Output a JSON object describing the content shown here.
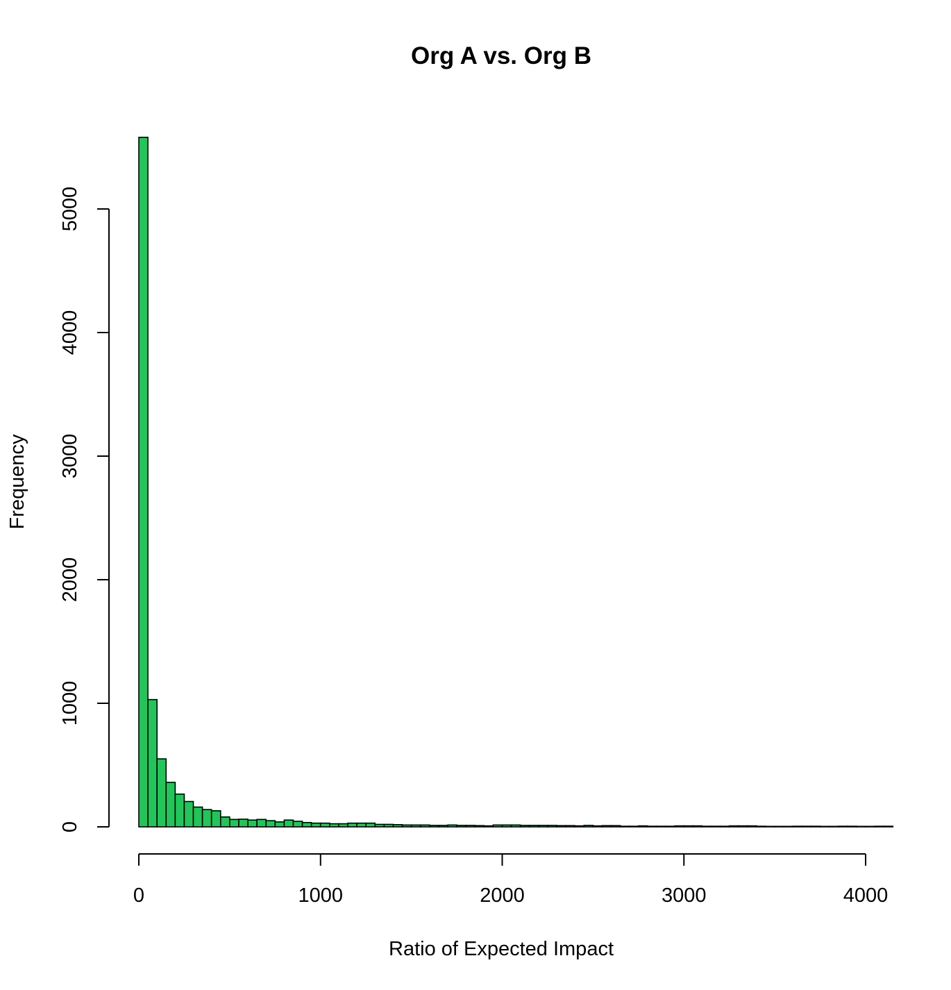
{
  "chart_data": {
    "type": "bar",
    "title": "Org A vs. Org B",
    "xlabel": "Ratio of Expected Impact",
    "ylabel": "Frequency",
    "bin_width": 50,
    "x_start": 0,
    "xlim": [
      0,
      4150
    ],
    "ylim": [
      0,
      5000
    ],
    "x_ticks": [
      0,
      1000,
      2000,
      3000,
      4000
    ],
    "y_ticks": [
      0,
      1000,
      2000,
      3000,
      4000,
      5000
    ],
    "x_tick_labels": [
      "0",
      "1000",
      "2000",
      "3000",
      "4000"
    ],
    "y_tick_labels": [
      "0",
      "1000",
      "2000",
      "3000",
      "4000",
      "5000"
    ],
    "grid": false,
    "bar_color": "#22c55a",
    "values": [
      5580,
      1030,
      550,
      360,
      265,
      205,
      160,
      140,
      130,
      80,
      60,
      62,
      55,
      60,
      50,
      40,
      55,
      45,
      35,
      30,
      30,
      25,
      25,
      30,
      30,
      30,
      20,
      20,
      18,
      15,
      15,
      15,
      12,
      12,
      15,
      12,
      12,
      10,
      8,
      15,
      15,
      15,
      12,
      12,
      12,
      12,
      10,
      10,
      8,
      12,
      8,
      10,
      10,
      5,
      5,
      8,
      5,
      5,
      5,
      8,
      8,
      8,
      5,
      5,
      5,
      8,
      8,
      8,
      5,
      4,
      4,
      4,
      5,
      5,
      5,
      4,
      4,
      5,
      5,
      4,
      4,
      5,
      5
    ]
  }
}
